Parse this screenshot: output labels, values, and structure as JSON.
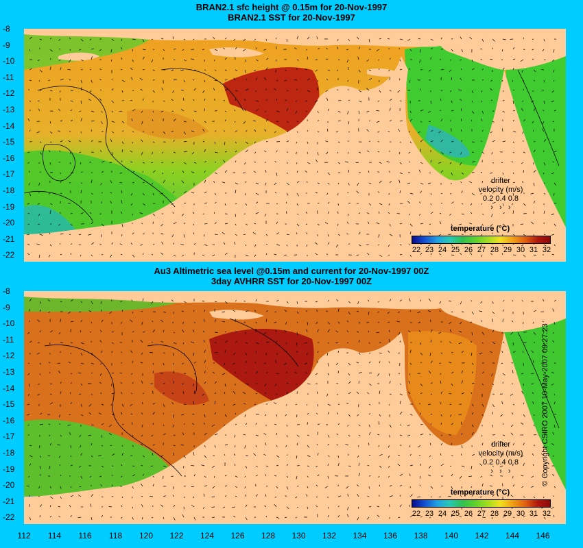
{
  "top_panel": {
    "title_line1": "BRAN2.1 sfc height @ 0.15m for 20-Nov-1997",
    "title_line2": "BRAN2.1 SST for 20-Nov-1997",
    "drifter_label": "drifter",
    "velocity_label": "velocity (m/s)",
    "velocity_values": "0.2  0.4  0.8",
    "colorbar_title": "temperature (°C)"
  },
  "bottom_panel": {
    "title_line1": "Au3 Altimetric sea level  @0.15m and current for 20-Nov-1997 00Z",
    "title_line2": "3day AVHRR SST for 20-Nov-1997 00Z",
    "drifter_label": "drifter",
    "velocity_label": "velocity (m/s)",
    "velocity_values": "0.2  0.4  0.8",
    "colorbar_title": "temperature (°C)"
  },
  "colorbar_labels": [
    "22",
    "23",
    "24",
    "25",
    "26",
    "27",
    "28",
    "29",
    "30",
    "31",
    "32"
  ],
  "lat_labels": [
    "-8",
    "-9",
    "-10",
    "-11",
    "-12",
    "-13",
    "-14",
    "-15",
    "-16",
    "-17",
    "-18",
    "-19",
    "-20",
    "-21",
    "-22"
  ],
  "lon_labels": [
    "112",
    "114",
    "116",
    "118",
    "120",
    "122",
    "124",
    "126",
    "128",
    "130",
    "132",
    "134",
    "136",
    "138",
    "140",
    "142",
    "144",
    "146"
  ],
  "copyright": "© Copyright CSIRO 2007  10-May-2007 09:27:23",
  "colors": {
    "background": "#00ccff",
    "land": "#ffcc99",
    "sst_warm": "#e8941a",
    "sst_hot": "#a50f0f",
    "sst_mid": "#4ccc22",
    "sst_cool": "#26b0c0"
  }
}
